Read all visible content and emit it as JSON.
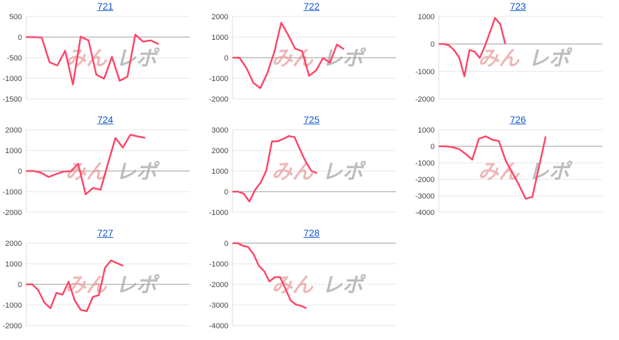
{
  "watermark": {
    "part1": "みん",
    "part2": "レポ",
    "color1": "#e8a0a0",
    "color2": "#a8a8a8"
  },
  "line_color": "#ff4466",
  "chart_data": [
    {
      "type": "line",
      "title": "721",
      "xmax": 21,
      "ylim": [
        -1500,
        500
      ],
      "yticks": [
        500,
        0,
        -500,
        -1000,
        -1500
      ],
      "values": [
        0,
        0,
        -10,
        -610,
        -690,
        -330,
        -1150,
        10,
        -80,
        -910,
        -1010,
        -480,
        -1060,
        -960,
        60,
        -110,
        -80,
        -170
      ]
    },
    {
      "type": "line",
      "title": "722",
      "xmax": 23.5,
      "ylim": [
        -2000,
        2000
      ],
      "yticks": [
        2000,
        1000,
        0,
        -1000,
        -2000
      ],
      "values": [
        0,
        0,
        -500,
        -1220,
        -1480,
        -750,
        270,
        1700,
        1100,
        440,
        320,
        -880,
        -620,
        -20,
        -240,
        640,
        410
      ]
    },
    {
      "type": "line",
      "title": "723",
      "xmax": 32,
      "ylim": [
        -2000,
        1000
      ],
      "yticks": [
        1000,
        0,
        -1000,
        -2000
      ],
      "values": [
        0,
        0,
        -50,
        -230,
        -500,
        -1180,
        -220,
        -280,
        -510,
        -80,
        430,
        950,
        720,
        0
      ]
    },
    {
      "type": "line",
      "title": "724",
      "xmax": 22,
      "ylim": [
        -2000,
        2000
      ],
      "yticks": [
        2000,
        1000,
        0,
        -1000,
        -2000
      ],
      "values": [
        0,
        0,
        -80,
        -290,
        -150,
        -30,
        -10,
        340,
        -1130,
        -820,
        -910,
        370,
        1600,
        1140,
        1760,
        1680,
        1610
      ]
    },
    {
      "type": "line",
      "title": "725",
      "xmax": 29,
      "ylim": [
        -1000,
        3000
      ],
      "yticks": [
        3000,
        2000,
        1000,
        0,
        -1000
      ],
      "values": [
        0,
        0,
        -100,
        -480,
        80,
        440,
        1020,
        2440,
        2440,
        2560,
        2700,
        2640,
        2020,
        1440,
        1000,
        900
      ]
    },
    {
      "type": "line",
      "title": "726",
      "xmax": 24.5,
      "ylim": [
        -4000,
        1000
      ],
      "yticks": [
        1000,
        0,
        -1000,
        -2000,
        -3000,
        -4000
      ],
      "values": [
        0,
        0,
        -50,
        -160,
        -460,
        -810,
        460,
        610,
        400,
        320,
        -860,
        -1600,
        -2350,
        -3180,
        -3070,
        -1250,
        600
      ]
    },
    {
      "type": "line",
      "title": "727",
      "xmax": 27,
      "ylim": [
        -2000,
        2000
      ],
      "yticks": [
        2000,
        1000,
        0,
        -1000,
        -2000
      ],
      "values": [
        0,
        0,
        -280,
        -880,
        -1160,
        -410,
        -500,
        130,
        -760,
        -1240,
        -1300,
        -610,
        -520,
        800,
        1160,
        1030,
        900
      ]
    },
    {
      "type": "line",
      "title": "728",
      "xmax": 31,
      "ylim": [
        -4000,
        0
      ],
      "yticks": [
        0,
        -1000,
        -2000,
        -3000,
        -4000
      ],
      "values": [
        0,
        0,
        -130,
        -190,
        -540,
        -1100,
        -1360,
        -1860,
        -1650,
        -1650,
        -2190,
        -2780,
        -2980,
        -3040,
        -3160
      ]
    }
  ]
}
